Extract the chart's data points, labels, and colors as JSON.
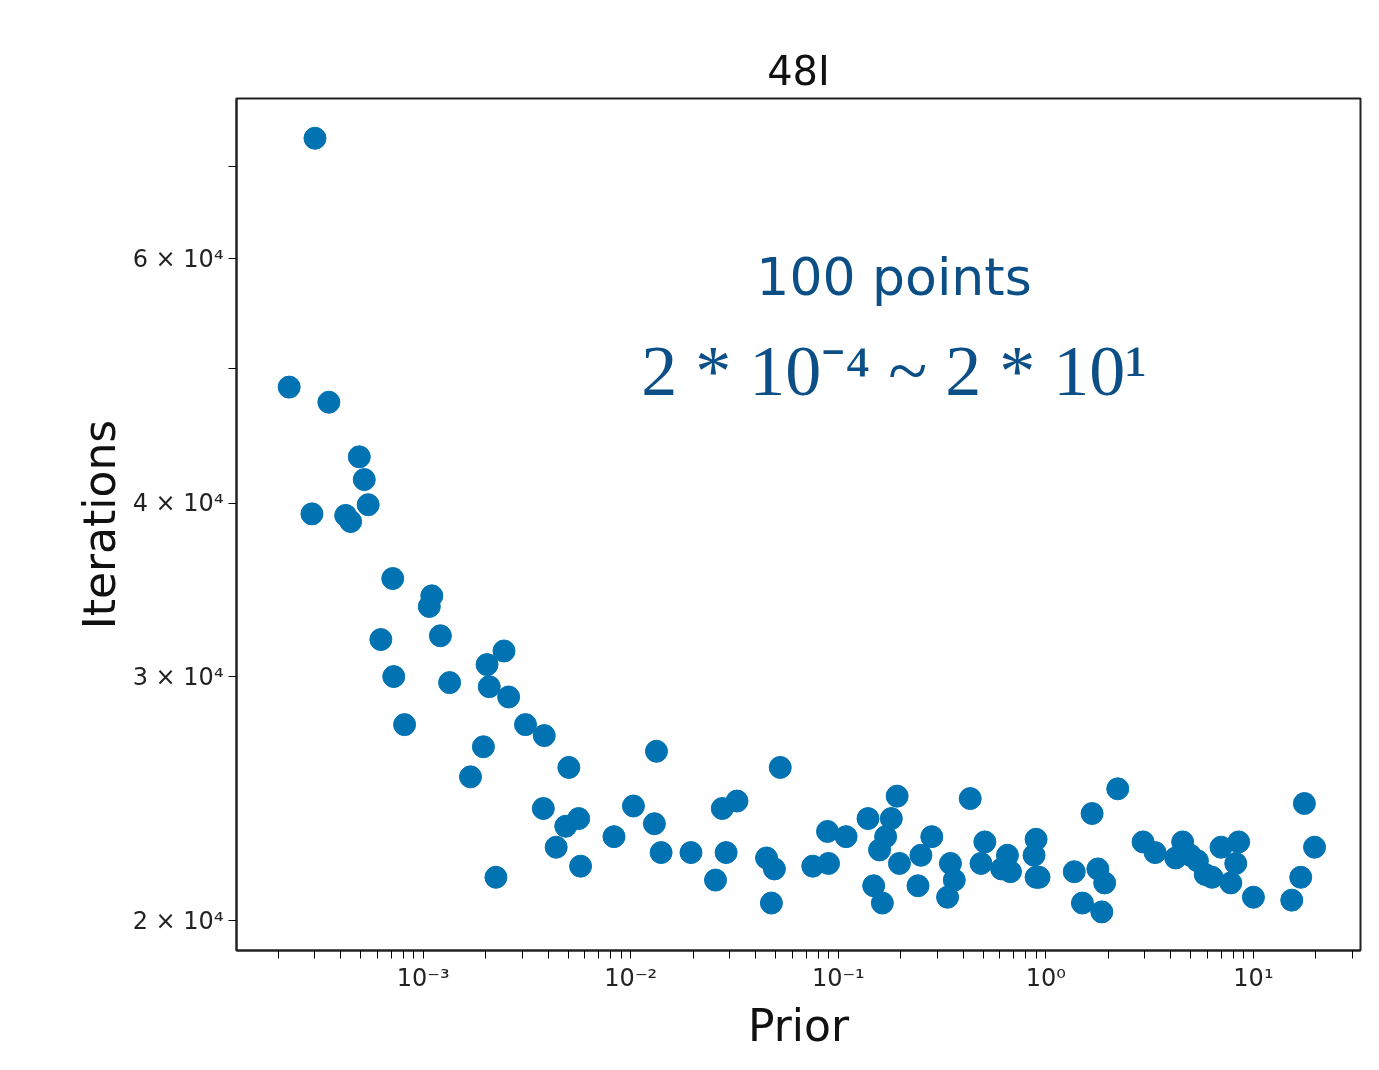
{
  "chart_data": {
    "type": "scatter",
    "title": "48I",
    "xlabel": "Prior",
    "ylabel": "Iterations",
    "log": "xy",
    "grid": false,
    "marker": "circle",
    "annotations": [
      "100 points",
      "2 * 10⁻⁴ ~ 2 * 10¹"
    ],
    "xlim": [
      0.000126,
      32.8
    ],
    "ylim": [
      19040,
      78300
    ],
    "xticks": [
      {
        "value": 0.0002,
        "label": null
      },
      {
        "value": 0.0003,
        "label": null
      },
      {
        "value": 0.0004,
        "label": null
      },
      {
        "value": 0.0005,
        "label": null
      },
      {
        "value": 0.0006,
        "label": null
      },
      {
        "value": 0.0007,
        "label": null
      },
      {
        "value": 0.0008,
        "label": null
      },
      {
        "value": 0.0009,
        "label": null
      },
      {
        "value": 0.001,
        "label": "10⁻³"
      },
      {
        "value": 0.002,
        "label": null
      },
      {
        "value": 0.003,
        "label": null
      },
      {
        "value": 0.004,
        "label": null
      },
      {
        "value": 0.005,
        "label": null
      },
      {
        "value": 0.006,
        "label": null
      },
      {
        "value": 0.007,
        "label": null
      },
      {
        "value": 0.008,
        "label": null
      },
      {
        "value": 0.009,
        "label": null
      },
      {
        "value": 0.01,
        "label": "10⁻²"
      },
      {
        "value": 0.02,
        "label": null
      },
      {
        "value": 0.03,
        "label": null
      },
      {
        "value": 0.04,
        "label": null
      },
      {
        "value": 0.05,
        "label": null
      },
      {
        "value": 0.06,
        "label": null
      },
      {
        "value": 0.07,
        "label": null
      },
      {
        "value": 0.08,
        "label": null
      },
      {
        "value": 0.09,
        "label": null
      },
      {
        "value": 0.1,
        "label": "10⁻¹"
      },
      {
        "value": 0.2,
        "label": null
      },
      {
        "value": 0.3,
        "label": null
      },
      {
        "value": 0.4,
        "label": null
      },
      {
        "value": 0.5,
        "label": null
      },
      {
        "value": 0.6,
        "label": null
      },
      {
        "value": 0.7,
        "label": null
      },
      {
        "value": 0.8,
        "label": null
      },
      {
        "value": 0.9,
        "label": null
      },
      {
        "value": 1,
        "label": "10⁰"
      },
      {
        "value": 2,
        "label": null
      },
      {
        "value": 3,
        "label": null
      },
      {
        "value": 4,
        "label": null
      },
      {
        "value": 5,
        "label": null
      },
      {
        "value": 6,
        "label": null
      },
      {
        "value": 7,
        "label": null
      },
      {
        "value": 8,
        "label": null
      },
      {
        "value": 9,
        "label": null
      },
      {
        "value": 10,
        "label": "10¹"
      },
      {
        "value": 20,
        "label": null
      },
      {
        "value": 30,
        "label": null
      }
    ],
    "yticks": [
      {
        "value": 20000,
        "label": "2 × 10⁴"
      },
      {
        "value": 30000,
        "label": "3 × 10⁴"
      },
      {
        "value": 40000,
        "label": "4 × 10⁴"
      },
      {
        "value": 50000,
        "label": null
      },
      {
        "value": 60000,
        "label": "6 × 10⁴"
      },
      {
        "value": 70000,
        "label": null
      }
    ],
    "series": [
      {
        "color": "#0173b2",
        "x": [
          0.000226,
          0.000301,
          0.000291,
          0.000351,
          0.000423,
          0.000447,
          0.000492,
          0.00052,
          0.000543,
          0.000625,
          0.000713,
          0.000721,
          0.000813,
          0.00107,
          0.0011,
          0.00121,
          0.00134,
          0.00169,
          0.00195,
          0.00203,
          0.00208,
          0.00224,
          0.00245,
          0.00258,
          0.00311,
          0.00383,
          0.00379,
          0.00437,
          0.00486,
          0.00503,
          0.00561,
          0.00573,
          0.0083,
          0.0103,
          0.013,
          0.0133,
          0.014,
          0.0195,
          0.0256,
          0.0276,
          0.0288,
          0.0325,
          0.0451,
          0.0492,
          0.0476,
          0.0525,
          0.0753,
          0.0887,
          0.0897,
          0.109,
          0.139,
          0.148,
          0.158,
          0.163,
          0.169,
          0.18,
          0.192,
          0.197,
          0.242,
          0.25,
          0.282,
          0.336,
          0.347,
          0.362,
          0.432,
          0.487,
          0.508,
          0.612,
          0.653,
          0.675,
          0.877,
          0.897,
          0.897,
          0.927,
          1.37,
          1.5,
          1.67,
          1.78,
          1.86,
          1.92,
          2.22,
          2.94,
          3.36,
          4.22,
          4.56,
          4.97,
          5.37,
          5.86,
          6.32,
          6.98,
          7.78,
          8.22,
          8.49,
          10.0,
          15.3,
          16.9,
          17.6,
          19.7
        ],
        "values": [
          48500,
          73300,
          39300,
          47300,
          39200,
          38800,
          43200,
          41600,
          39900,
          31900,
          35300,
          30000,
          27700,
          33700,
          34300,
          32100,
          29700,
          25400,
          26700,
          30600,
          29500,
          21500,
          31300,
          29000,
          27700,
          27200,
          24100,
          22600,
          23400,
          25800,
          23700,
          21900,
          23000,
          24200,
          23500,
          26500,
          22400,
          22400,
          21400,
          24100,
          22400,
          24400,
          22200,
          21800,
          20600,
          25800,
          21900,
          23200,
          22000,
          23000,
          23700,
          21200,
          22500,
          20600,
          23000,
          23700,
          24600,
          22000,
          21200,
          22300,
          23000,
          20800,
          22000,
          21400,
          24500,
          22000,
          22800,
          21800,
          22300,
          21700,
          22300,
          22900,
          21500,
          21500,
          21700,
          20600,
          23900,
          21800,
          20300,
          21300,
          24900,
          22800,
          22400,
          22200,
          22800,
          22300,
          22100,
          21600,
          21500,
          22600,
          21300,
          22000,
          22800,
          20800,
          20700,
          21500,
          24300,
          22600
        ]
      }
    ]
  }
}
